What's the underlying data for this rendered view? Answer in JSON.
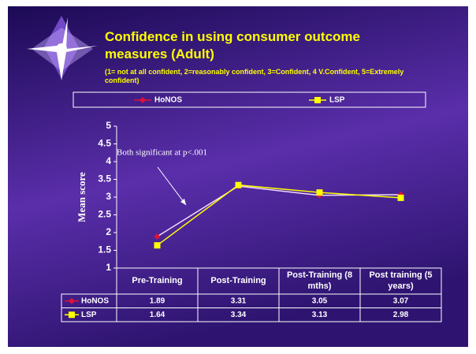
{
  "chart_data": {
    "type": "line",
    "title": "Confidence in using consumer outcome measures (Adult)",
    "subtitle": "(1= not at all confident, 2=reasonably confident, 3=Confident, 4 V.Confident, 5=Extremely confident)",
    "y_label": "Mean score",
    "annotation": "Both significant at p<.001",
    "categories": [
      "Pre-Training",
      "Post-Training",
      "Post-Training (8 mths)",
      "Post training (5 years)"
    ],
    "series": [
      {
        "name": "HoNOS",
        "color": "#e0103a",
        "marker": "diamond",
        "values": [
          1.89,
          3.31,
          3.05,
          3.07
        ]
      },
      {
        "name": "LSP",
        "color": "#ffff00",
        "marker": "square",
        "values": [
          1.64,
          3.34,
          3.13,
          2.98
        ]
      }
    ],
    "ylim": [
      1,
      5
    ],
    "yticks": [
      1,
      1.5,
      2,
      2.5,
      3,
      3.5,
      4,
      4.5,
      5
    ],
    "legend": "top"
  }
}
